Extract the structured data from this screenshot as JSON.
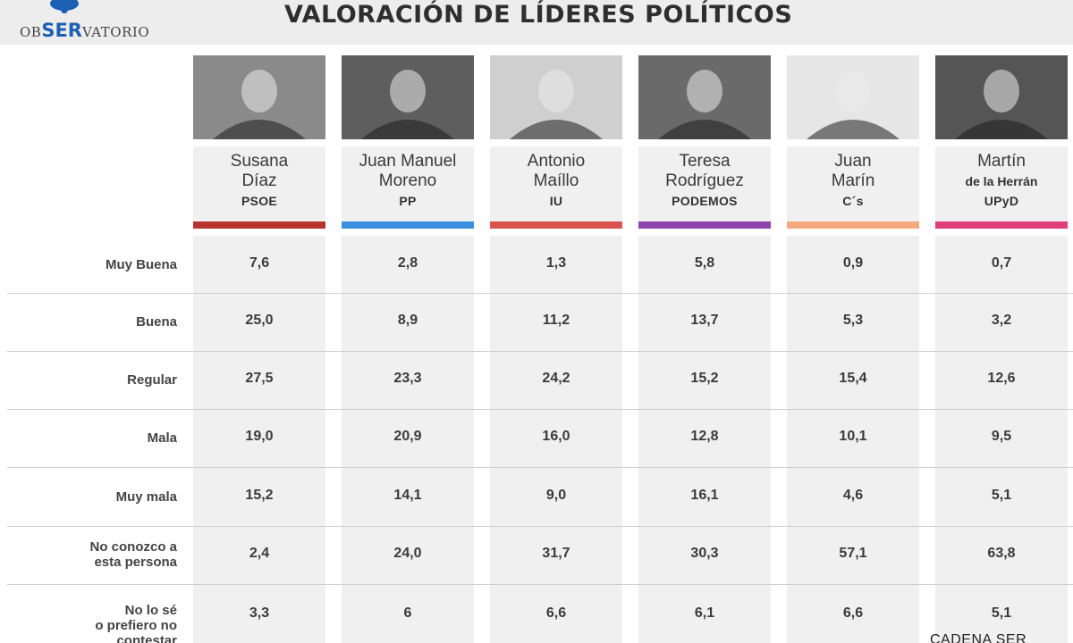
{
  "header": {
    "logo": {
      "ob": "OB",
      "ser": "SER",
      "vatorio": "VATORIO"
    },
    "title": "VALORACIÓN DE LÍDERES POLÍTICOS"
  },
  "leaders": [
    {
      "name_line1": "Susana",
      "name_line2": "Díaz",
      "name_line2_small": false,
      "party": "PSOE",
      "party_color": "#b8322e",
      "photo_bg": "#8a8a8a"
    },
    {
      "name_line1": "Juan Manuel",
      "name_line2": "Moreno",
      "name_line2_small": false,
      "party": "PP",
      "party_color": "#3a8fe0",
      "photo_bg": "#5e5e5e"
    },
    {
      "name_line1": "Antonio",
      "name_line2": "Maíllo",
      "name_line2_small": false,
      "party": "IU",
      "party_color": "#d9534f",
      "photo_bg": "#cfcfcf"
    },
    {
      "name_line1": "Teresa",
      "name_line2": "Rodríguez",
      "name_line2_small": false,
      "party": "PODEMOS",
      "party_color": "#8e44ad",
      "photo_bg": "#6a6a6a"
    },
    {
      "name_line1": "Juan",
      "name_line2": "Marín",
      "name_line2_small": false,
      "party": "C´s",
      "party_color": "#f5a97f",
      "photo_bg": "#e6e6e6"
    },
    {
      "name_line1": "Martín",
      "name_line2": "de la Herrán",
      "name_line2_small": true,
      "party": "UPyD",
      "party_color": "#e0407a",
      "photo_bg": "#555555"
    }
  ],
  "rows": [
    {
      "label_lines": [
        "Muy Buena"
      ]
    },
    {
      "label_lines": [
        "Buena"
      ]
    },
    {
      "label_lines": [
        "Regular"
      ]
    },
    {
      "label_lines": [
        "Mala"
      ]
    },
    {
      "label_lines": [
        "Muy mala"
      ]
    },
    {
      "label_lines": [
        "No conozco a",
        "esta persona"
      ]
    },
    {
      "label_lines": [
        "No lo sé",
        "o prefiero no",
        "contestar"
      ]
    }
  ],
  "chart_data": {
    "type": "table",
    "title": "VALORACIÓN DE LÍDERES POLÍTICOS",
    "columns": [
      "Susana Díaz (PSOE)",
      "Juan Manuel Moreno (PP)",
      "Antonio Maíllo (IU)",
      "Teresa Rodríguez (PODEMOS)",
      "Juan Marín (C´s)",
      "Martín de la Herrán (UPyD)"
    ],
    "row_labels": [
      "Muy Buena",
      "Buena",
      "Regular",
      "Mala",
      "Muy mala",
      "No conozco a esta persona",
      "No lo sé o prefiero no contestar"
    ],
    "cells": [
      [
        "7,6",
        "2,8",
        "1,3",
        "5,8",
        "0,9",
        "0,7"
      ],
      [
        "25,0",
        "8,9",
        "11,2",
        "13,7",
        "5,3",
        "3,2"
      ],
      [
        "27,5",
        "23,3",
        "24,2",
        "15,2",
        "15,4",
        "12,6"
      ],
      [
        "19,0",
        "20,9",
        "16,0",
        "12,8",
        "10,1",
        "9,5"
      ],
      [
        "15,2",
        "14,1",
        "9,0",
        "16,1",
        "4,6",
        "5,1"
      ],
      [
        "2,4",
        "24,0",
        "31,7",
        "30,3",
        "57,1",
        "63,8"
      ],
      [
        "3,3",
        "6",
        "6,6",
        "6,1",
        "6,6",
        "5,1"
      ]
    ]
  },
  "source": "CADENA SER"
}
